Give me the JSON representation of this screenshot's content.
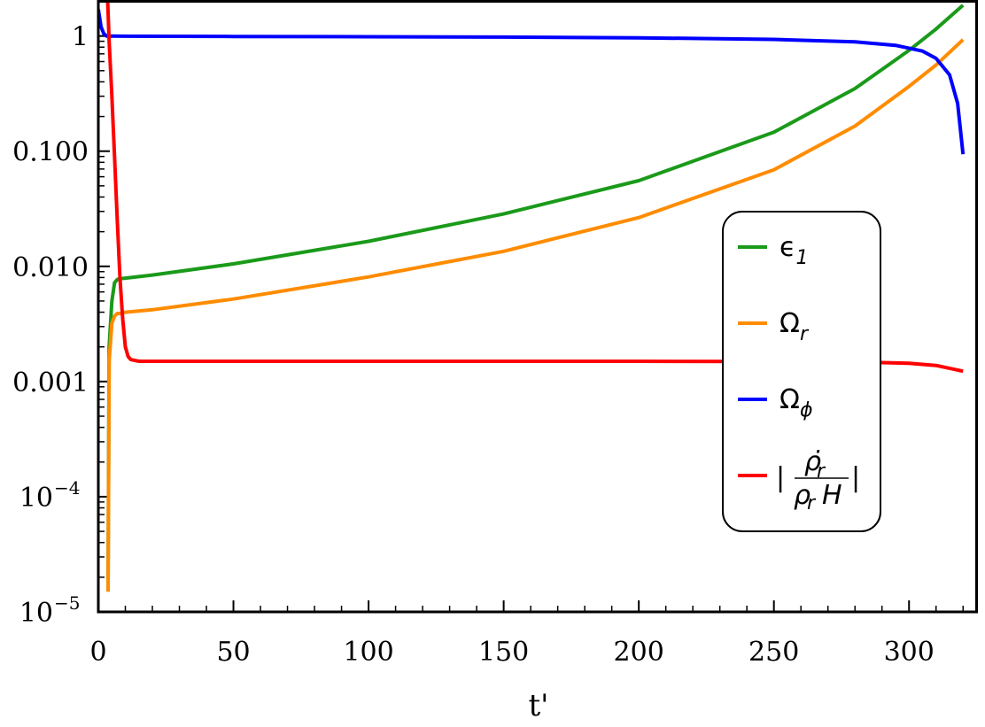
{
  "chart_data": {
    "type": "line",
    "xlabel": "t'",
    "ylabel": "",
    "xlim": [
      0,
      325
    ],
    "ylim": [
      1e-05,
      2
    ],
    "y_scale": "log",
    "grid": false,
    "legend_position": "right",
    "x_ticks": [
      "0",
      "50",
      "100",
      "150",
      "200",
      "250",
      "300"
    ],
    "y_ticks": [
      {
        "base": "1",
        "exp": ""
      },
      {
        "base": "0.100",
        "exp": ""
      },
      {
        "base": "0.010",
        "exp": ""
      },
      {
        "base": "0.001",
        "exp": ""
      },
      {
        "base": "10",
        "exp": "−4"
      },
      {
        "base": "10",
        "exp": "−5"
      }
    ],
    "series": [
      {
        "name": "ϵ1",
        "label_main": "ϵ",
        "label_sub": "1",
        "color": "#1a9a1a",
        "x": [
          3.6,
          4,
          5,
          6,
          7,
          8,
          10,
          20,
          50,
          100,
          150,
          200,
          250,
          280,
          300,
          310,
          320
        ],
        "y": [
          1.5e-05,
          0.002,
          0.005,
          0.0072,
          0.0077,
          0.0078,
          0.0079,
          0.0084,
          0.0105,
          0.0165,
          0.0285,
          0.0555,
          0.146,
          0.35,
          0.75,
          1.15,
          1.85
        ]
      },
      {
        "name": "Ωr",
        "label_main": "Ω",
        "label_sub": "r",
        "color": "#ff8c00",
        "x": [
          3.6,
          4,
          5,
          6,
          7,
          8,
          10,
          20,
          50,
          100,
          150,
          200,
          250,
          280,
          300,
          310,
          320
        ],
        "y": [
          1.5e-05,
          0.0015,
          0.0032,
          0.0037,
          0.0039,
          0.0039,
          0.004,
          0.0042,
          0.0052,
          0.0081,
          0.0135,
          0.0265,
          0.069,
          0.165,
          0.365,
          0.56,
          0.93
        ]
      },
      {
        "name": "Ωϕ",
        "label_main": "Ω",
        "label_sub": "ϕ",
        "color": "#0000ff",
        "x": [
          0,
          1,
          2,
          3,
          5,
          10,
          50,
          100,
          150,
          200,
          250,
          280,
          295,
          305,
          310,
          315,
          318,
          320
        ],
        "y": [
          1.7,
          1.2,
          1.05,
          1.0,
          0.998,
          0.996,
          0.99,
          0.985,
          0.978,
          0.965,
          0.935,
          0.89,
          0.83,
          0.74,
          0.64,
          0.46,
          0.26,
          0.094
        ]
      },
      {
        "name": "|ρ̇r/(ρr H)|",
        "label_main": "|ρ̇r/(ρr H)|",
        "label_sub": "",
        "color": "#ff0000",
        "x": [
          3.3,
          4,
          5,
          6,
          7,
          8,
          9,
          10,
          11,
          12,
          15,
          20,
          50,
          100,
          200,
          250,
          280,
          300,
          310,
          320
        ],
        "y": [
          2.5,
          0.9,
          0.3,
          0.09,
          0.025,
          0.008,
          0.0035,
          0.002,
          0.00165,
          0.00155,
          0.0015,
          0.0015,
          0.0015,
          0.0015,
          0.0015,
          0.00149,
          0.00148,
          0.00144,
          0.00138,
          0.00123
        ]
      }
    ]
  }
}
